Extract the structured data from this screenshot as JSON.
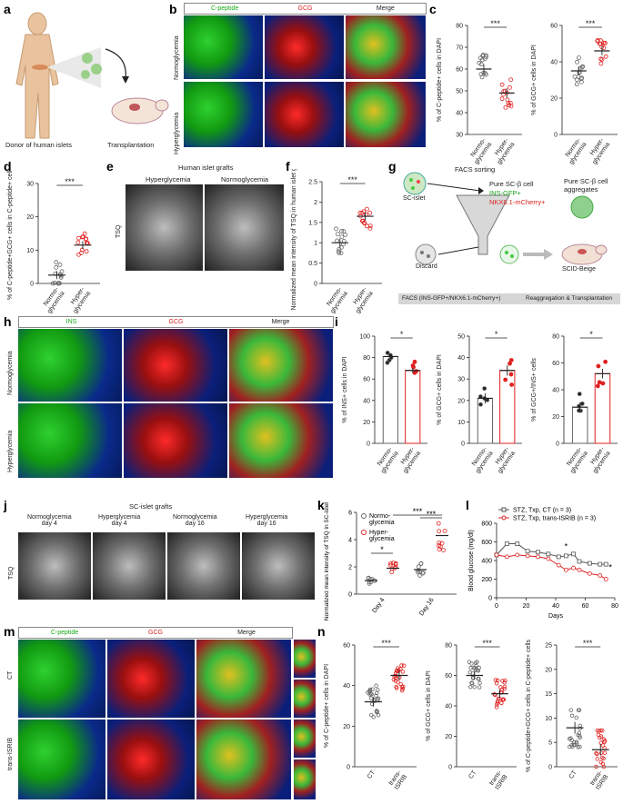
{
  "panels": {
    "a": {
      "letter": "a",
      "donor_label": "Donor of human islets",
      "transplant_label": "Transplantation"
    },
    "b": {
      "letter": "b",
      "headers": [
        "C-peptide",
        "GCG",
        "Merge"
      ],
      "rows": [
        "Normoglycemia",
        "Hyperglycemia"
      ],
      "colors": {
        "green": "#1aa81a",
        "red": "#e02020"
      }
    },
    "c": {
      "letter": "c",
      "sig": [
        "***",
        "***"
      ],
      "ylabels": [
        "% of C-peptide+ cells in DAPI",
        "% of GCG+ cells in DAPI"
      ],
      "xticks": [
        "Normo-\nglycemia",
        "Hyper-\nglycemia"
      ]
    },
    "d": {
      "letter": "d",
      "sig": "***",
      "ylabel": "% of C-peptide+GCG+ cells in C-peptide+ cells"
    },
    "e": {
      "letter": "e",
      "title": "Human islet grafts",
      "cols": [
        "Hyperglycemia",
        "Normoglycemia"
      ],
      "row": "TSQ"
    },
    "f": {
      "letter": "f",
      "sig": "***",
      "ylabel": "Normalized mean intensity of TSQ in human islet grafts"
    },
    "g": {
      "letter": "g",
      "sc_islet": "SC-islet",
      "facs_sorting": "FACS sorting",
      "pure_cell": "Pure SC-β cell",
      "ins_gfp": "INS-GFP+",
      "nkx": "NKX6.1-mCherry+",
      "aggregates": "Pure SC-β cell\naggregates",
      "discard": "Discard",
      "scid": "SCID-Beige",
      "bar_left": "FACS (INS-GFP+/NKX6.1-mCherry+)",
      "bar_right": "Reaggregation & Transplantation"
    },
    "h": {
      "letter": "h",
      "headers": [
        "INS",
        "GCG",
        "Merge"
      ],
      "rows": [
        "Normoglycemia",
        "Hyperglycemia"
      ]
    },
    "i": {
      "letter": "i",
      "sig": [
        "*",
        "*",
        "*"
      ],
      "ylabels": [
        "% of INS+ cells in DAPI",
        "% of GCG+ cells in DAPI",
        "% of GCG+/INS+ cells"
      ]
    },
    "j": {
      "letter": "j",
      "title": "SC-islet grafts",
      "cols": [
        "Normoglycemia\nday 4",
        "Hyperglycemia\nday 4",
        "Normoglycemia\nday 16",
        "Hyperglycemia\nday 16"
      ],
      "row": "TSQ"
    },
    "k": {
      "letter": "k",
      "sig": [
        "*",
        "***",
        "***"
      ],
      "ylabel": "Normalized mean intensity of TSQ in SC-islet grafts",
      "legend": [
        "Normo-\nglycemia",
        "Hyper-\nglycemia"
      ],
      "xticks": [
        "Day 4",
        "Day 16"
      ]
    },
    "l": {
      "letter": "l",
      "legend": [
        "STZ, Txp, CT (n = 3)",
        "STZ, Txp, trans-ISRIB (n = 3)"
      ],
      "xlabel": "Days",
      "ylabel": "Blood glucose (mg/dl)"
    },
    "m": {
      "letter": "m",
      "headers": [
        "C-peptide",
        "GCG",
        "Merge"
      ],
      "rows": [
        "CT",
        "trans-ISRIB"
      ]
    },
    "n": {
      "letter": "n",
      "sig": [
        "***",
        "***",
        "***"
      ],
      "ylabels": [
        "% of C-peptide+ cells in DAPI",
        "% of GCG+ cells in DAPI",
        "% of C-peptide+GCG+ cells in C-peptide+ cells"
      ],
      "xticks": [
        "CT",
        "trans-ISRIB"
      ]
    }
  },
  "chart_data": [
    {
      "type": "scatter",
      "panel": "c1",
      "categories": [
        "Normo-glycemia",
        "Hyper-glycemia"
      ],
      "means": [
        60,
        49
      ],
      "ylim": [
        30,
        80
      ],
      "yticks": [
        30,
        40,
        50,
        60,
        70,
        80
      ]
    },
    {
      "type": "scatter",
      "panel": "c2",
      "categories": [
        "Normo-glycemia",
        "Hyper-glycemia"
      ],
      "means": [
        35,
        46
      ],
      "ylim": [
        0,
        60
      ],
      "yticks": [
        0,
        20,
        40,
        60
      ]
    },
    {
      "type": "scatter",
      "panel": "d",
      "categories": [
        "Normo-glycemia",
        "Hyper-glycemia"
      ],
      "means": [
        2.5,
        11.5
      ],
      "ylim": [
        0,
        30
      ],
      "yticks": [
        0,
        10,
        20,
        30
      ]
    },
    {
      "type": "scatter",
      "panel": "f",
      "categories": [
        "Normo-glycemia",
        "Hyper-glycemia"
      ],
      "means": [
        1.0,
        1.65
      ],
      "ylim": [
        0,
        2.5
      ],
      "yticks": [
        0.0,
        0.5,
        1.0,
        1.5,
        2.0,
        2.5
      ]
    },
    {
      "type": "bar",
      "panel": "i1",
      "categories": [
        "Normo-glycemia",
        "Hyper-glycemia"
      ],
      "values": [
        81,
        68
      ],
      "ylim": [
        0,
        100
      ],
      "yticks": [
        0,
        20,
        40,
        60,
        80,
        100
      ]
    },
    {
      "type": "bar",
      "panel": "i2",
      "categories": [
        "Normo-glycemia",
        "Hyper-glycemia"
      ],
      "values": [
        21,
        34
      ],
      "ylim": [
        0,
        50
      ],
      "yticks": [
        0,
        10,
        20,
        30,
        40,
        50
      ]
    },
    {
      "type": "bar",
      "panel": "i3",
      "categories": [
        "Normo-glycemia",
        "Hyper-glycemia"
      ],
      "values": [
        27,
        52
      ],
      "ylim": [
        0,
        80
      ],
      "yticks": [
        0,
        20,
        40,
        60,
        80
      ]
    },
    {
      "type": "scatter",
      "panel": "k",
      "categories": [
        "Day 4",
        "Day 16"
      ],
      "series": [
        {
          "name": "Normo-glycemia",
          "means": [
            1.0,
            1.8
          ]
        },
        {
          "name": "Hyper-glycemia",
          "means": [
            1.9,
            4.3
          ]
        }
      ],
      "ylim": [
        0,
        6
      ],
      "yticks": [
        0,
        2,
        4,
        6
      ]
    },
    {
      "type": "line",
      "panel": "l",
      "x": [
        0,
        7,
        14,
        21,
        28,
        35,
        42,
        47,
        52,
        56,
        63,
        70,
        74
      ],
      "series": [
        {
          "name": "STZ, Txp, CT (n = 3)",
          "values": [
            460,
            580,
            580,
            500,
            490,
            470,
            440,
            450,
            470,
            390,
            370,
            360,
            360
          ]
        },
        {
          "name": "STZ, Txp, trans-ISRIB (n = 3)",
          "values": [
            460,
            440,
            460,
            450,
            440,
            420,
            350,
            300,
            320,
            300,
            260,
            240,
            200
          ]
        }
      ],
      "xlim": [
        0,
        80
      ],
      "xticks": [
        0,
        20,
        40,
        60,
        80
      ],
      "ylim": [
        0,
        800
      ],
      "yticks": [
        0,
        200,
        400,
        600,
        800
      ]
    },
    {
      "type": "scatter",
      "panel": "n1",
      "categories": [
        "CT",
        "trans-ISRIB"
      ],
      "means": [
        32,
        45
      ],
      "ylim": [
        0,
        60
      ],
      "yticks": [
        0,
        20,
        40,
        60
      ]
    },
    {
      "type": "scatter",
      "panel": "n2",
      "categories": [
        "CT",
        "trans-ISRIB"
      ],
      "means": [
        60,
        48
      ],
      "ylim": [
        0,
        80
      ],
      "yticks": [
        0,
        20,
        40,
        60,
        80
      ]
    },
    {
      "type": "scatter",
      "panel": "n3",
      "categories": [
        "CT",
        "trans-ISRIB"
      ],
      "means": [
        8,
        3.5
      ],
      "ylim": [
        0,
        25
      ],
      "yticks": [
        0,
        5,
        10,
        15,
        20,
        25
      ]
    }
  ]
}
